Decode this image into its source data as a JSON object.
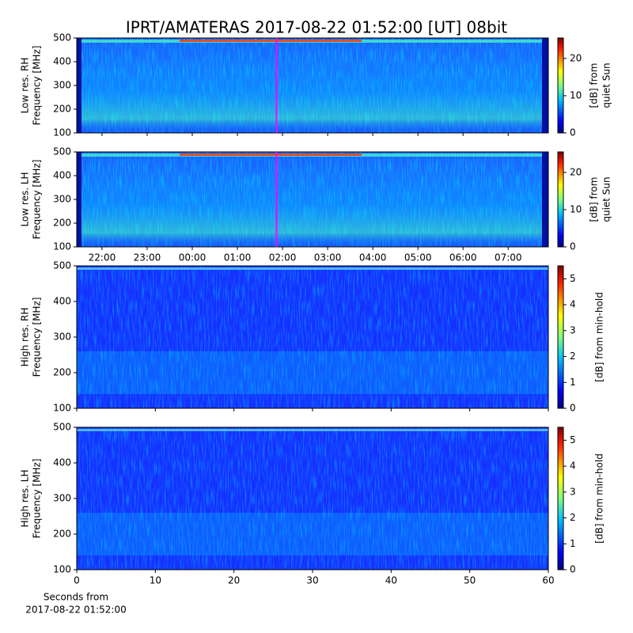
{
  "title": "IPRT/AMATERAS 2017-08-22 01:52:00 [UT]   08bit",
  "chart_data": [
    {
      "type": "heatmap",
      "ylabel": [
        "Low res. RH",
        "Frequency [MHz]"
      ],
      "xlim": [
        21.44,
        31.89
      ],
      "ylim": [
        100,
        500
      ],
      "yticks": [
        100,
        200,
        300,
        400,
        500
      ],
      "marker_x": 25.867,
      "marker_color": "#ff00ff",
      "colorbar": {
        "label": [
          "[dB] from",
          "quiet Sun"
        ],
        "lim": [
          0,
          25.5
        ],
        "ticks": [
          0,
          10,
          20
        ],
        "colormap": "jet"
      }
    },
    {
      "type": "heatmap",
      "ylabel": [
        "Low res. LH",
        "Frequency [MHz]"
      ],
      "xlim": [
        21.44,
        31.89
      ],
      "ylim": [
        100,
        500
      ],
      "yticks": [
        100,
        200,
        300,
        400,
        500
      ],
      "xticks": [
        {
          "value": 22,
          "label": "22:00"
        },
        {
          "value": 23,
          "label": "23:00"
        },
        {
          "value": 24,
          "label": "00:00"
        },
        {
          "value": 25,
          "label": "01:00"
        },
        {
          "value": 26,
          "label": "02:00"
        },
        {
          "value": 27,
          "label": "03:00"
        },
        {
          "value": 28,
          "label": "04:00"
        },
        {
          "value": 29,
          "label": "05:00"
        },
        {
          "value": 30,
          "label": "06:00"
        },
        {
          "value": 31,
          "label": "07:00"
        }
      ],
      "marker_x": 25.867,
      "marker_color": "#ff00ff",
      "colorbar": {
        "label": [
          "[dB] from",
          "quiet Sun"
        ],
        "lim": [
          0,
          25.5
        ],
        "ticks": [
          0,
          10,
          20
        ],
        "colormap": "jet"
      }
    },
    {
      "type": "heatmap",
      "ylabel": [
        "High res. RH",
        "Frequency [MHz]"
      ],
      "xlim": [
        0,
        60
      ],
      "ylim": [
        100,
        500
      ],
      "yticks": [
        100,
        200,
        300,
        400,
        500
      ],
      "colorbar": {
        "label": [
          "[dB] from min-hold"
        ],
        "lim": [
          0,
          5.5
        ],
        "ticks": [
          0,
          1,
          2,
          3,
          4,
          5
        ],
        "colormap": "jet"
      }
    },
    {
      "type": "heatmap",
      "ylabel": [
        "High res. LH",
        "Frequency [MHz]"
      ],
      "xlim": [
        0,
        60
      ],
      "ylim": [
        100,
        500
      ],
      "yticks": [
        100,
        200,
        300,
        400,
        500
      ],
      "xticks": [
        0,
        10,
        20,
        30,
        40,
        50,
        60
      ],
      "xlabel": [
        "Seconds from",
        "2017-08-22 01:52:00"
      ],
      "colorbar": {
        "label": [
          "[dB] from min-hold"
        ],
        "lim": [
          0,
          5.5
        ],
        "ticks": [
          0,
          1,
          2,
          3,
          4,
          5
        ],
        "colormap": "jet"
      }
    }
  ]
}
